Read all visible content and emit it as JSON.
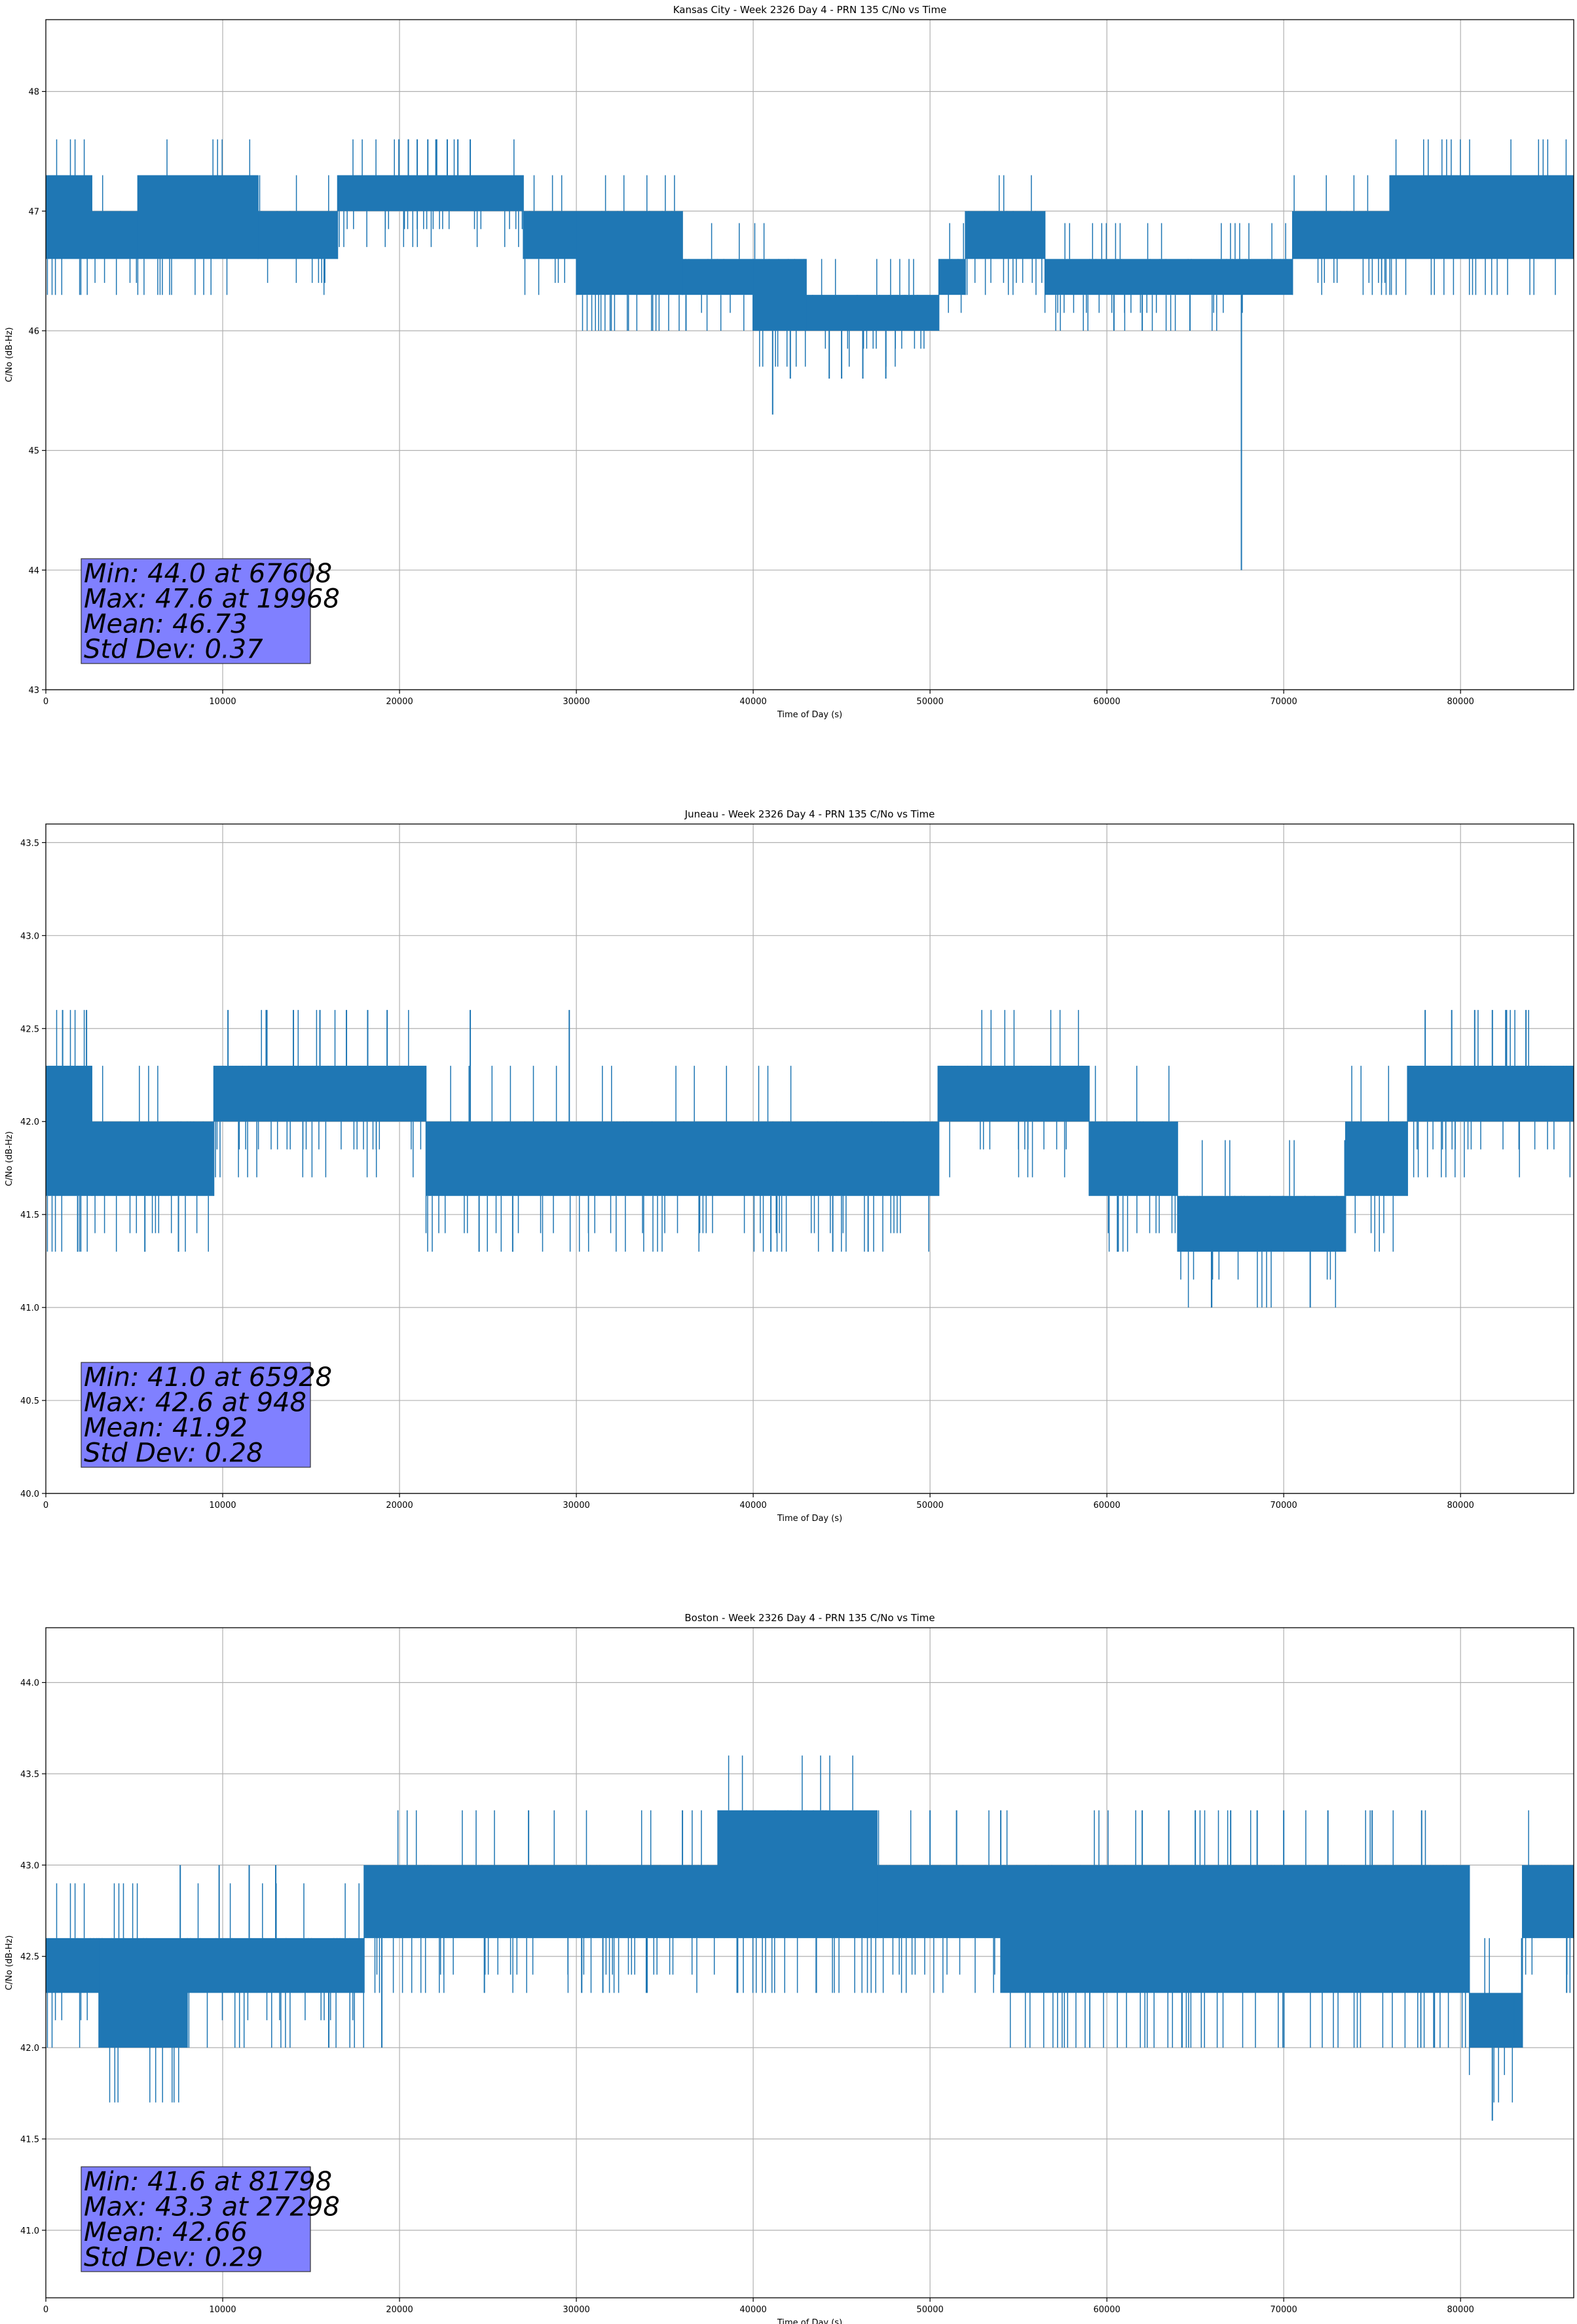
{
  "colors": {
    "series": "#1f77b4",
    "grid": "#b0b0b0",
    "stats_box": "#8080ff",
    "stats_box_edge": "#333333"
  },
  "chart_data": [
    {
      "type": "line",
      "title": "Kansas City - Week 2326 Day 4 - PRN 135 C/No vs Time",
      "xlabel": "Time of Day (s)",
      "ylabel": "C/No (dB-Hz)",
      "xlim": [
        0,
        86400
      ],
      "ylim": [
        43,
        48.6
      ],
      "xticks": [
        0,
        10000,
        20000,
        30000,
        40000,
        50000,
        60000,
        70000,
        80000
      ],
      "yticks": [
        43,
        44,
        45,
        46,
        47,
        48
      ],
      "ytick_labels": [
        "43",
        "44",
        "45",
        "46",
        "47",
        "48"
      ],
      "grid": true,
      "base_level": 46.73,
      "segments": [
        [
          0,
          2600,
          46.6,
          47.3
        ],
        [
          2600,
          5200,
          46.6,
          47.0
        ],
        [
          5200,
          12000,
          46.6,
          47.3
        ],
        [
          12000,
          16500,
          46.6,
          47.0
        ],
        [
          16500,
          27000,
          47.0,
          47.3
        ],
        [
          27000,
          30000,
          46.6,
          47.0
        ],
        [
          30000,
          36000,
          46.3,
          47.0
        ],
        [
          36000,
          40000,
          46.3,
          46.6
        ],
        [
          40000,
          43000,
          46.0,
          46.6
        ],
        [
          43000,
          50500,
          46.0,
          46.3
        ],
        [
          50500,
          52000,
          46.3,
          46.6
        ],
        [
          52000,
          56500,
          46.6,
          47.0
        ],
        [
          56500,
          70500,
          46.3,
          46.6
        ],
        [
          70500,
          76000,
          46.6,
          47.0
        ],
        [
          76000,
          86400,
          46.6,
          47.3
        ]
      ],
      "spikes": [
        [
          19968,
          47.6
        ],
        [
          20500,
          47.6
        ],
        [
          21000,
          47.6
        ],
        [
          21600,
          47.6
        ],
        [
          22100,
          47.6
        ],
        [
          22700,
          47.6
        ],
        [
          23300,
          47.6
        ],
        [
          24000,
          47.6
        ],
        [
          36200,
          46.0
        ],
        [
          41100,
          45.3
        ],
        [
          42100,
          45.6
        ],
        [
          44300,
          45.6
        ],
        [
          45000,
          45.6
        ],
        [
          46200,
          45.6
        ],
        [
          47500,
          45.6
        ],
        [
          60400,
          46.0
        ],
        [
          62000,
          46.0
        ],
        [
          64700,
          46.0
        ],
        [
          67608,
          44.0
        ]
      ],
      "stats": {
        "min": "Min: 44.0 at 67608",
        "max": "Max: 47.6 at 19968",
        "mean": "Mean: 46.73",
        "std": "Std Dev: 0.37"
      }
    },
    {
      "type": "line",
      "title": "Juneau - Week 2326 Day 4 - PRN 135 C/No vs Time",
      "xlabel": "Time of Day (s)",
      "ylabel": "C/No (dB-Hz)",
      "xlim": [
        0,
        86400
      ],
      "ylim": [
        40.0,
        43.6
      ],
      "xticks": [
        0,
        10000,
        20000,
        30000,
        40000,
        50000,
        60000,
        70000,
        80000
      ],
      "yticks": [
        40.0,
        40.5,
        41.0,
        41.5,
        42.0,
        42.5,
        43.0,
        43.5
      ],
      "ytick_labels": [
        "40.0",
        "40.5",
        "41.0",
        "41.5",
        "42.0",
        "42.5",
        "43.0",
        "43.5"
      ],
      "grid": true,
      "base_level": 41.92,
      "segments": [
        [
          0,
          2600,
          41.6,
          42.3
        ],
        [
          2600,
          9500,
          41.6,
          42.0
        ],
        [
          9500,
          21500,
          42.0,
          42.3
        ],
        [
          21500,
          50500,
          41.6,
          42.0
        ],
        [
          50500,
          59000,
          42.0,
          42.3
        ],
        [
          59000,
          64000,
          41.6,
          42.0
        ],
        [
          64000,
          73500,
          41.3,
          41.6
        ],
        [
          73500,
          77000,
          41.6,
          42.0
        ],
        [
          77000,
          86400,
          42.0,
          42.3
        ]
      ],
      "spikes": [
        [
          948,
          42.6
        ],
        [
          2300,
          42.6
        ],
        [
          10300,
          42.6
        ],
        [
          12500,
          42.6
        ],
        [
          14000,
          42.6
        ],
        [
          15500,
          42.6
        ],
        [
          17000,
          42.6
        ],
        [
          18200,
          42.6
        ],
        [
          19300,
          42.6
        ],
        [
          24000,
          42.6
        ],
        [
          29600,
          42.6
        ],
        [
          1800,
          41.3
        ],
        [
          5600,
          41.3
        ],
        [
          7500,
          41.3
        ],
        [
          24500,
          41.3
        ],
        [
          26400,
          41.3
        ],
        [
          41000,
          41.3
        ],
        [
          44500,
          41.3
        ],
        [
          46500,
          41.3
        ],
        [
          60600,
          41.3
        ],
        [
          65928,
          41.0
        ],
        [
          71500,
          41.0
        ],
        [
          78000,
          42.6
        ],
        [
          79500,
          42.6
        ],
        [
          80800,
          42.6
        ],
        [
          81800,
          42.6
        ],
        [
          82600,
          42.6
        ],
        [
          83700,
          42.6
        ]
      ],
      "stats": {
        "min": "Min: 41.0 at 65928",
        "max": "Max: 42.6 at 948",
        "mean": "Mean: 41.92",
        "std": "Std Dev: 0.28"
      }
    },
    {
      "type": "line",
      "title": "Boston - Week 2326 Day 4 - PRN 135 C/No vs Time",
      "xlabel": "Time of Day (s)",
      "ylabel": "C/No (dB-Hz)",
      "xlim": [
        0,
        86400
      ],
      "ylim": [
        40.63,
        44.3
      ],
      "xticks": [
        0,
        10000,
        20000,
        30000,
        40000,
        50000,
        60000,
        70000,
        80000
      ],
      "yticks": [
        41.0,
        41.5,
        42.0,
        42.5,
        43.0,
        43.5,
        44.0
      ],
      "ytick_labels": [
        "41.0",
        "41.5",
        "42.0",
        "42.5",
        "43.0",
        "43.5",
        "44.0"
      ],
      "grid": true,
      "base_level": 42.66,
      "segments": [
        [
          0,
          3000,
          42.3,
          42.6
        ],
        [
          3000,
          8000,
          42.0,
          42.6
        ],
        [
          8000,
          18000,
          42.3,
          42.6
        ],
        [
          18000,
          38000,
          42.6,
          43.0
        ],
        [
          38000,
          47000,
          42.6,
          43.3
        ],
        [
          47000,
          54000,
          42.6,
          43.0
        ],
        [
          54000,
          80500,
          42.3,
          43.0
        ],
        [
          80500,
          83500,
          42.0,
          42.3
        ],
        [
          83500,
          86400,
          42.6,
          43.0
        ]
      ],
      "spikes": [
        [
          7600,
          43.0
        ],
        [
          9800,
          43.0
        ],
        [
          11500,
          43.0
        ],
        [
          13000,
          43.0
        ],
        [
          24800,
          42.3
        ],
        [
          27298,
          43.3
        ],
        [
          30300,
          42.3
        ],
        [
          31500,
          42.3
        ],
        [
          34000,
          42.3
        ],
        [
          36000,
          43.3
        ],
        [
          50000,
          43.3
        ],
        [
          51500,
          43.3
        ],
        [
          54000,
          43.3
        ],
        [
          55300,
          42.3
        ],
        [
          62000,
          43.3
        ],
        [
          63500,
          43.3
        ],
        [
          65000,
          43.3
        ],
        [
          67000,
          43.3
        ],
        [
          68500,
          43.3
        ],
        [
          70000,
          43.3
        ],
        [
          72500,
          43.3
        ],
        [
          75000,
          43.3
        ],
        [
          77800,
          43.3
        ],
        [
          81798,
          41.6
        ],
        [
          83000,
          42.3
        ],
        [
          86000,
          42.3
        ],
        [
          16000,
          42.0
        ],
        [
          19000,
          42.0
        ]
      ],
      "stats": {
        "min": "Min: 41.6 at 81798",
        "max": "Max: 43.3 at 27298",
        "mean": "Mean: 42.66",
        "std": "Std Dev: 0.29"
      }
    }
  ]
}
